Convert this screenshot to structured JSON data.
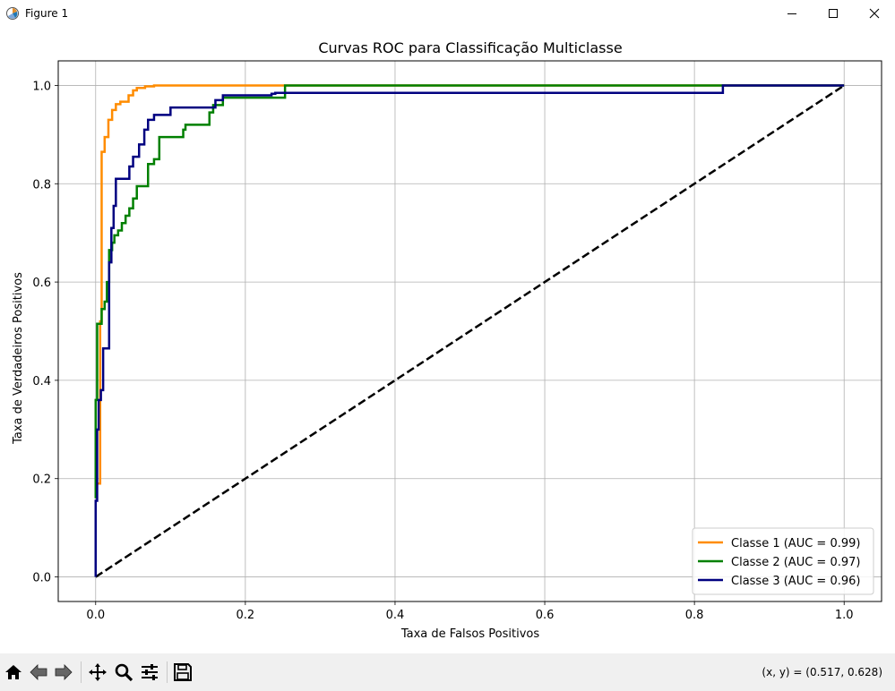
{
  "window": {
    "title": "Figure 1"
  },
  "toolbar": {
    "buttons": [
      "home-icon",
      "back-arrow-icon",
      "forward-arrow-icon",
      "pan-icon",
      "zoom-icon",
      "configure-subplots-icon",
      "save-icon"
    ],
    "coords_text": "(x, y) = (0.517, 0.628)"
  },
  "chart_data": {
    "type": "line",
    "title": "Curvas ROC para Classificação Multiclasse",
    "xlabel": "Taxa de Falsos Positivos",
    "ylabel": "Taxa de Verdadeiros Positivos",
    "xlim": [
      -0.05,
      1.05
    ],
    "ylim": [
      -0.05,
      1.05
    ],
    "xticks": [
      0.0,
      0.2,
      0.4,
      0.6,
      0.8,
      1.0
    ],
    "yticks": [
      0.0,
      0.2,
      0.4,
      0.6,
      0.8,
      1.0
    ],
    "xtick_labels": [
      "0.0",
      "0.2",
      "0.4",
      "0.6",
      "0.8",
      "1.0"
    ],
    "ytick_labels": [
      "0.0",
      "0.2",
      "0.4",
      "0.6",
      "0.8",
      "1.0"
    ],
    "grid": true,
    "legend_position": "lower-right",
    "series": [
      {
        "name": "Classe 1 (AUC = 0.99)",
        "color": "#ff8c00",
        "style": "step",
        "x": [
          0.0,
          0.006,
          0.006,
          0.008,
          0.008,
          0.012,
          0.012,
          0.017,
          0.017,
          0.022,
          0.022,
          0.027,
          0.027,
          0.033,
          0.033,
          0.044,
          0.044,
          0.05,
          0.05,
          0.055,
          0.055,
          0.066,
          0.066,
          0.078,
          0.078,
          0.255,
          0.255,
          1.0
        ],
        "y": [
          0.19,
          0.19,
          0.52,
          0.52,
          0.865,
          0.865,
          0.895,
          0.895,
          0.93,
          0.93,
          0.95,
          0.95,
          0.962,
          0.962,
          0.967,
          0.967,
          0.98,
          0.98,
          0.99,
          0.99,
          0.995,
          0.995,
          0.998,
          0.998,
          1.0,
          1.0,
          1.0,
          1.0
        ]
      },
      {
        "name": "Classe 2 (AUC = 0.97)",
        "color": "#008000",
        "style": "step",
        "x": [
          0.0,
          0.0,
          0.002,
          0.002,
          0.008,
          0.008,
          0.012,
          0.012,
          0.015,
          0.015,
          0.018,
          0.018,
          0.022,
          0.022,
          0.025,
          0.025,
          0.03,
          0.03,
          0.035,
          0.035,
          0.04,
          0.04,
          0.045,
          0.045,
          0.05,
          0.05,
          0.055,
          0.055,
          0.07,
          0.07,
          0.078,
          0.078,
          0.085,
          0.085,
          0.117,
          0.117,
          0.12,
          0.12,
          0.152,
          0.152,
          0.157,
          0.157,
          0.17,
          0.17,
          0.253,
          0.253,
          0.838,
          0.838,
          1.0
        ],
        "y": [
          0.16,
          0.36,
          0.36,
          0.515,
          0.515,
          0.545,
          0.545,
          0.56,
          0.56,
          0.6,
          0.6,
          0.665,
          0.665,
          0.68,
          0.68,
          0.695,
          0.695,
          0.705,
          0.705,
          0.72,
          0.72,
          0.735,
          0.735,
          0.75,
          0.75,
          0.77,
          0.77,
          0.795,
          0.795,
          0.84,
          0.84,
          0.85,
          0.85,
          0.895,
          0.895,
          0.91,
          0.91,
          0.92,
          0.92,
          0.945,
          0.945,
          0.96,
          0.96,
          0.975,
          0.975,
          1.0,
          1.0,
          1.0,
          1.0
        ]
      },
      {
        "name": "Classe 3 (AUC = 0.96)",
        "color": "#000080",
        "style": "step",
        "x": [
          0.0,
          0.0,
          0.002,
          0.002,
          0.004,
          0.004,
          0.007,
          0.007,
          0.01,
          0.01,
          0.018,
          0.018,
          0.021,
          0.021,
          0.024,
          0.024,
          0.027,
          0.027,
          0.03,
          0.03,
          0.045,
          0.045,
          0.05,
          0.05,
          0.058,
          0.058,
          0.065,
          0.065,
          0.07,
          0.07,
          0.078,
          0.078,
          0.1,
          0.1,
          0.16,
          0.16,
          0.17,
          0.17,
          0.235,
          0.235,
          0.24,
          0.24,
          0.838,
          0.838,
          1.0
        ],
        "y": [
          0.0,
          0.155,
          0.155,
          0.3,
          0.3,
          0.36,
          0.36,
          0.38,
          0.38,
          0.465,
          0.465,
          0.64,
          0.64,
          0.71,
          0.71,
          0.755,
          0.755,
          0.81,
          0.81,
          0.81,
          0.81,
          0.835,
          0.835,
          0.855,
          0.855,
          0.88,
          0.88,
          0.91,
          0.91,
          0.93,
          0.93,
          0.94,
          0.94,
          0.955,
          0.955,
          0.97,
          0.97,
          0.98,
          0.98,
          0.983,
          0.983,
          0.985,
          0.985,
          1.0,
          1.0
        ]
      },
      {
        "name": "",
        "color": "#000000",
        "style": "dashed",
        "x": [
          0.0,
          1.0
        ],
        "y": [
          0.0,
          1.0
        ]
      }
    ]
  }
}
